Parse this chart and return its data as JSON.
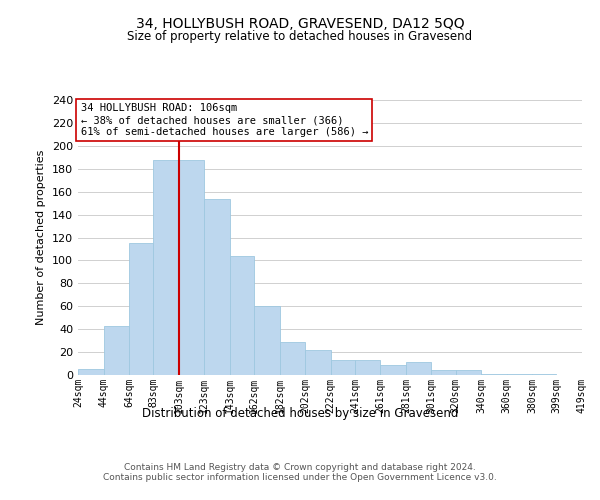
{
  "title": "34, HOLLYBUSH ROAD, GRAVESEND, DA12 5QQ",
  "subtitle": "Size of property relative to detached houses in Gravesend",
  "xlabel": "Distribution of detached houses by size in Gravesend",
  "ylabel": "Number of detached properties",
  "bar_color": "#bdd7ee",
  "bar_edge_color": "#9ec8e0",
  "background_color": "#ffffff",
  "grid_color": "#d0d0d0",
  "vline_color": "#cc0000",
  "vline_x": 103,
  "annotation_line1": "34 HOLLYBUSH ROAD: 106sqm",
  "annotation_line2": "← 38% of detached houses are smaller (366)",
  "annotation_line3": "61% of semi-detached houses are larger (586) →",
  "annotation_box_color": "#ffffff",
  "annotation_box_edge": "#cc0000",
  "footer_text": "Contains HM Land Registry data © Crown copyright and database right 2024.\nContains public sector information licensed under the Open Government Licence v3.0.",
  "ylim": [
    0,
    240
  ],
  "yticks": [
    0,
    20,
    40,
    60,
    80,
    100,
    120,
    140,
    160,
    180,
    200,
    220,
    240
  ],
  "bin_edges": [
    24,
    44,
    64,
    83,
    103,
    123,
    143,
    162,
    182,
    202,
    222,
    241,
    261,
    281,
    301,
    320,
    340,
    360,
    380,
    399,
    419
  ],
  "bin_labels": [
    "24sqm",
    "44sqm",
    "64sqm",
    "83sqm",
    "103sqm",
    "123sqm",
    "143sqm",
    "162sqm",
    "182sqm",
    "202sqm",
    "222sqm",
    "241sqm",
    "261sqm",
    "281sqm",
    "301sqm",
    "320sqm",
    "340sqm",
    "360sqm",
    "380sqm",
    "399sqm",
    "419sqm"
  ],
  "bar_heights": [
    5,
    43,
    115,
    188,
    188,
    154,
    104,
    60,
    29,
    22,
    13,
    13,
    9,
    11,
    4,
    4,
    1,
    1,
    1,
    0
  ]
}
